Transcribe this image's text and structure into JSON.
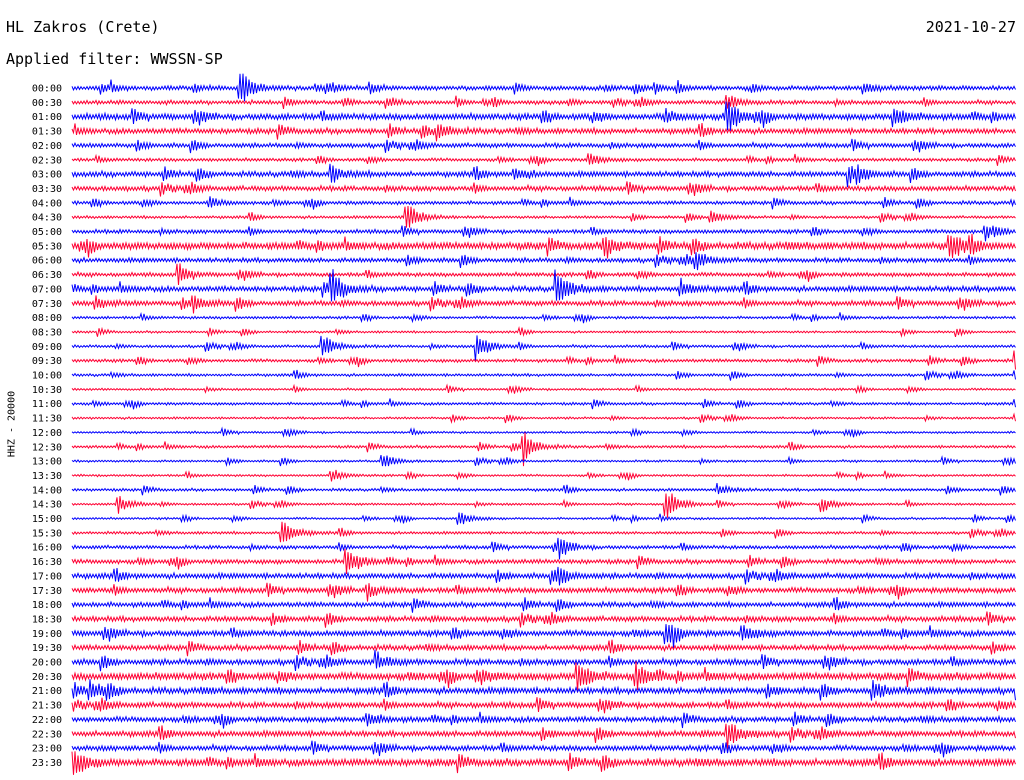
{
  "header": {
    "station": "HL Zakros (Crete)",
    "date": "2021-10-27",
    "filter": "Applied filter: WWSSN-SP",
    "channel_label": "HHZ - 20000"
  },
  "colors": {
    "even_rows": "#0000ff",
    "odd_rows": "#ff0033"
  },
  "chart_data": {
    "type": "line",
    "title": "HL Zakros (Crete)",
    "subtitle": "Applied filter: WWSSN-SP",
    "ylabel": "HHZ - 20000",
    "grid": false,
    "legend": "none",
    "categories": [
      "00:00",
      "00:30",
      "01:00",
      "01:30",
      "02:00",
      "02:30",
      "03:00",
      "03:30",
      "04:00",
      "04:30",
      "05:00",
      "05:30",
      "06:00",
      "06:30",
      "07:00",
      "07:30",
      "08:00",
      "08:30",
      "09:00",
      "09:30",
      "10:00",
      "10:30",
      "11:00",
      "11:30",
      "12:00",
      "12:30",
      "13:00",
      "13:30",
      "14:00",
      "14:30",
      "15:00",
      "15:30",
      "16:00",
      "16:30",
      "17:00",
      "17:30",
      "18:00",
      "18:30",
      "19:00",
      "19:30",
      "20:00",
      "20:30",
      "21:00",
      "21:30",
      "22:00",
      "22:30",
      "23:00",
      "23:30"
    ],
    "noise": [
      0.25,
      0.22,
      0.35,
      0.3,
      0.25,
      0.18,
      0.3,
      0.28,
      0.2,
      0.15,
      0.22,
      0.4,
      0.25,
      0.22,
      0.3,
      0.28,
      0.15,
      0.12,
      0.15,
      0.18,
      0.15,
      0.12,
      0.15,
      0.12,
      0.12,
      0.15,
      0.12,
      0.12,
      0.15,
      0.12,
      0.12,
      0.15,
      0.2,
      0.25,
      0.3,
      0.3,
      0.28,
      0.3,
      0.32,
      0.3,
      0.32,
      0.4,
      0.35,
      0.32,
      0.3,
      0.32,
      0.3,
      0.4
    ],
    "events": [
      {
        "row": 0,
        "minute": 5.5,
        "amp": 1.0
      },
      {
        "row": 0,
        "minute": 26.0,
        "amp": 0.3
      },
      {
        "row": 1,
        "minute": 21.5,
        "amp": 0.5
      },
      {
        "row": 2,
        "minute": 21.5,
        "amp": 1.0
      },
      {
        "row": 2,
        "minute": 27.0,
        "amp": 0.6
      },
      {
        "row": 2,
        "minute": 19.5,
        "amp": 0.35
      },
      {
        "row": 3,
        "minute": 12.0,
        "amp": 0.5
      },
      {
        "row": 5,
        "minute": 17.0,
        "amp": 0.35
      },
      {
        "row": 6,
        "minute": 8.5,
        "amp": 0.5
      },
      {
        "row": 6,
        "minute": 25.5,
        "amp": 0.6
      },
      {
        "row": 6,
        "minute": 14.5,
        "amp": 0.35
      },
      {
        "row": 8,
        "minute": 4.5,
        "amp": 0.3
      },
      {
        "row": 9,
        "minute": 11.0,
        "amp": 1.0
      },
      {
        "row": 9,
        "minute": 21.0,
        "amp": 0.4
      },
      {
        "row": 10,
        "minute": 30.0,
        "amp": 0.4
      },
      {
        "row": 11,
        "minute": 17.5,
        "amp": 0.6
      },
      {
        "row": 11,
        "minute": 28.8,
        "amp": 0.8
      },
      {
        "row": 12,
        "minute": 20.5,
        "amp": 0.5
      },
      {
        "row": 13,
        "minute": 3.5,
        "amp": 0.4
      },
      {
        "row": 14,
        "minute": 8.5,
        "amp": 1.0
      },
      {
        "row": 14,
        "minute": 15.9,
        "amp": 1.0
      },
      {
        "row": 14,
        "minute": 20.0,
        "amp": 0.5
      },
      {
        "row": 15,
        "minute": 0.8,
        "amp": 0.35
      },
      {
        "row": 15,
        "minute": 4.0,
        "amp": 0.4
      },
      {
        "row": 18,
        "minute": 8.2,
        "amp": 0.8
      },
      {
        "row": 18,
        "minute": 13.3,
        "amp": 0.8
      },
      {
        "row": 19,
        "minute": 31.0,
        "amp": 0.6
      },
      {
        "row": 20,
        "minute": 31.0,
        "amp": 0.4
      },
      {
        "row": 25,
        "minute": 14.8,
        "amp": 1.0
      },
      {
        "row": 26,
        "minute": 10.2,
        "amp": 0.4
      },
      {
        "row": 27,
        "minute": 8.5,
        "amp": 0.35
      },
      {
        "row": 28,
        "minute": 21.2,
        "amp": 0.35
      },
      {
        "row": 29,
        "minute": 1.5,
        "amp": 0.55
      },
      {
        "row": 29,
        "minute": 19.5,
        "amp": 1.0
      },
      {
        "row": 29,
        "minute": 24.6,
        "amp": 0.5
      },
      {
        "row": 30,
        "minute": 12.7,
        "amp": 0.45
      },
      {
        "row": 31,
        "minute": 6.9,
        "amp": 0.9
      },
      {
        "row": 32,
        "minute": 16.0,
        "amp": 0.5
      },
      {
        "row": 33,
        "minute": 9.0,
        "amp": 0.9
      },
      {
        "row": 34,
        "minute": 16.0,
        "amp": 0.4
      },
      {
        "row": 35,
        "minute": 9.7,
        "amp": 0.4
      },
      {
        "row": 38,
        "minute": 19.5,
        "amp": 0.5
      },
      {
        "row": 38,
        "minute": 22.0,
        "amp": 0.5
      },
      {
        "row": 40,
        "minute": 10.0,
        "amp": 0.5
      },
      {
        "row": 41,
        "minute": 16.6,
        "amp": 1.0
      },
      {
        "row": 41,
        "minute": 18.5,
        "amp": 0.8
      },
      {
        "row": 41,
        "minute": 13.3,
        "amp": 0.4
      },
      {
        "row": 42,
        "minute": 0.6,
        "amp": 0.5
      },
      {
        "row": 42,
        "minute": 26.3,
        "amp": 0.5
      },
      {
        "row": 44,
        "minute": 9.7,
        "amp": 0.4
      },
      {
        "row": 45,
        "minute": 21.5,
        "amp": 0.9
      },
      {
        "row": 47,
        "minute": 0.0,
        "amp": 0.9
      }
    ]
  }
}
